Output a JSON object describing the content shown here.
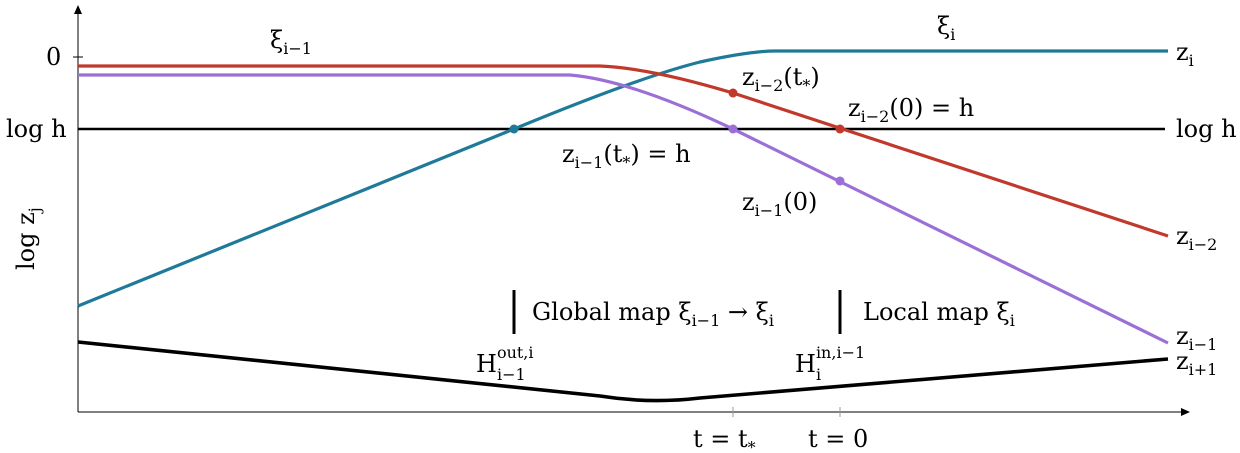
{
  "axes": {
    "ylabel": "log z",
    "ylabel_sub": "j",
    "ytick_zero": "0",
    "ytick_logh": "log h",
    "xtick_tstar": "t = t",
    "xtick_tstar_sub": "*",
    "xtick_zero": "t = 0",
    "right_logh": "log h"
  },
  "curve_labels": {
    "xi_im1_base": "ξ",
    "xi_im1_sub": "i−1",
    "xi_i_base": "ξ",
    "xi_i_sub": "i",
    "z_i_base": "z",
    "z_i_sub": "i",
    "z_im2_base": "z",
    "z_im2_sub": "i−2",
    "z_im1_base": "z",
    "z_im1_sub": "i−1",
    "z_ip1_base": "z",
    "z_ip1_sub": "i+1"
  },
  "point_labels": {
    "zim2_tstar_base": "z",
    "zim2_tstar_sub": "i−2",
    "zim2_tstar_arg": "(t",
    "zim2_tstar_argsub": "*",
    "zim2_tstar_close": ")",
    "zim2_0_base": "z",
    "zim2_0_sub": "i−2",
    "zim2_0_rest": "(0) = h",
    "zim1_tstar_base": "z",
    "zim1_tstar_sub": "i−1",
    "zim1_tstar_arg": "(t",
    "zim1_tstar_argsub": "*",
    "zim1_tstar_rest": ") = h",
    "zim1_0_base": "z",
    "zim1_0_sub": "i−1",
    "zim1_0_rest": "(0)"
  },
  "maps": {
    "global_a": "Global map ξ",
    "global_sub1": "i−1",
    "global_b": " → ξ",
    "global_sub2": "i",
    "local_a": "Local map ξ",
    "local_sub": "i",
    "h_out_base": "H",
    "h_out_sup": "out,i",
    "h_out_sub": "i−1",
    "h_in_base": "H",
    "h_in_sup": "in,i−1",
    "h_in_sub": "i"
  },
  "colors": {
    "z_i": "#1f7a99",
    "z_im2": "#c0392b",
    "z_im1": "#9b6fd6",
    "z_ip1": "#000000",
    "logh_line": "#000000"
  }
}
